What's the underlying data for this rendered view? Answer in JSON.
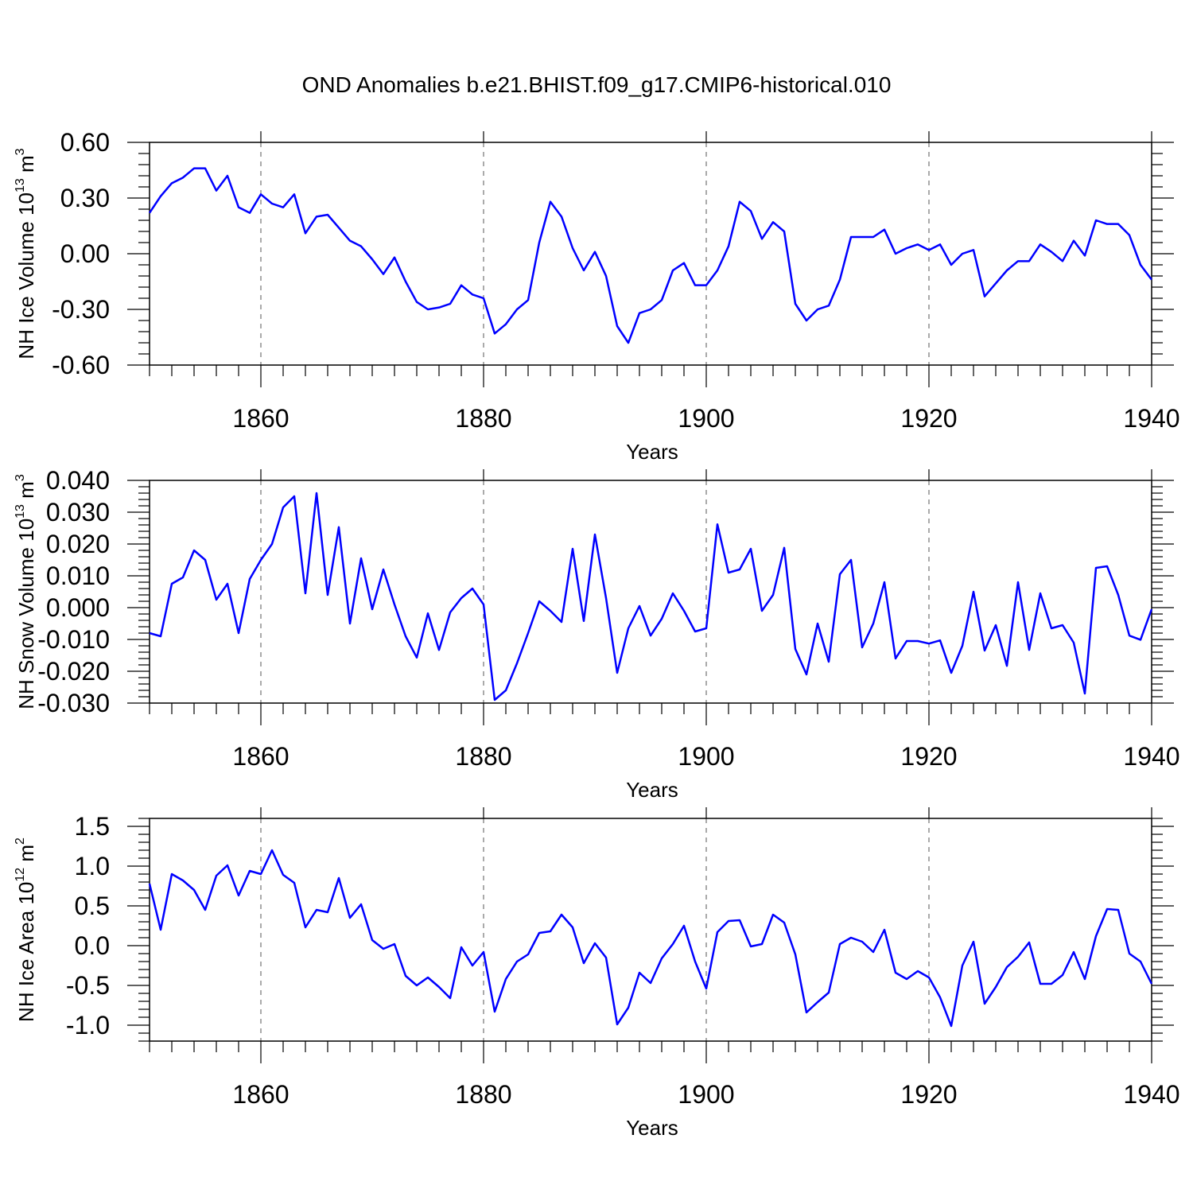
{
  "title": "OND Anomalies b.e21.BHIST.f09_g17.CMIP6-historical.010",
  "line_color": "#0000ff",
  "chart_data": [
    {
      "type": "line",
      "id": "ice-volume",
      "ylabel": {
        "base": "NH Ice Volume 10",
        "exp": "13",
        "unit": " m",
        "unit_exp": "3"
      },
      "xlabel": "Years",
      "xlim": [
        1850,
        1940
      ],
      "ylim": [
        -0.6,
        0.6
      ],
      "xticks": [
        1860,
        1880,
        1900,
        1920,
        1940
      ],
      "yticks": [
        0.6,
        0.3,
        0.0,
        -0.3,
        -0.6
      ],
      "ytick_labels": [
        "0.60",
        "0.30",
        "0.00",
        "-0.30",
        "-0.60"
      ],
      "series": [
        {
          "name": "NH Ice Volume",
          "x_start": 1850,
          "values": [
            0.22,
            0.31,
            0.38,
            0.41,
            0.46,
            0.46,
            0.34,
            0.42,
            0.25,
            0.22,
            0.32,
            0.27,
            0.25,
            0.32,
            0.11,
            0.2,
            0.21,
            0.14,
            0.07,
            0.04,
            -0.03,
            -0.11,
            -0.02,
            -0.15,
            -0.26,
            -0.3,
            -0.29,
            -0.27,
            -0.17,
            -0.22,
            -0.24,
            -0.43,
            -0.38,
            -0.3,
            -0.25,
            0.06,
            0.28,
            0.2,
            0.03,
            -0.09,
            0.01,
            -0.12,
            -0.39,
            -0.48,
            -0.32,
            -0.3,
            -0.25,
            -0.09,
            -0.05,
            -0.17,
            -0.17,
            -0.09,
            0.04,
            0.28,
            0.23,
            0.08,
            0.17,
            0.12,
            -0.27,
            -0.36,
            -0.3,
            -0.28,
            -0.14,
            0.09,
            0.09,
            0.09,
            0.13,
            0.0,
            0.03,
            0.05,
            0.02,
            0.05,
            -0.06,
            0.0,
            0.02,
            -0.23,
            -0.16,
            -0.09,
            -0.04,
            -0.04,
            0.05,
            0.01,
            -0.04,
            0.07,
            -0.01,
            0.18,
            0.16,
            0.16,
            0.1,
            -0.06,
            -0.14
          ]
        }
      ]
    },
    {
      "type": "line",
      "id": "snow-volume",
      "ylabel": {
        "base": "NH Snow Volume 10",
        "exp": "13",
        "unit": " m",
        "unit_exp": "3"
      },
      "xlabel": "Years",
      "xlim": [
        1850,
        1940
      ],
      "ylim": [
        -0.03,
        0.04
      ],
      "xticks": [
        1860,
        1880,
        1900,
        1920,
        1940
      ],
      "yticks": [
        0.04,
        0.03,
        0.02,
        0.01,
        0.0,
        -0.01,
        -0.02,
        -0.03
      ],
      "ytick_labels": [
        "0.040",
        "0.030",
        "0.020",
        "0.010",
        "0.000",
        "-0.010",
        "-0.020",
        "-0.030"
      ],
      "series": [
        {
          "name": "NH Snow Volume",
          "x_start": 1850,
          "values": [
            -0.008,
            -0.009,
            0.0075,
            0.0095,
            0.018,
            0.015,
            0.0025,
            0.0075,
            -0.008,
            0.009,
            0.015,
            0.02,
            0.0315,
            0.035,
            0.0045,
            0.036,
            0.004,
            0.0253,
            -0.005,
            0.0155,
            -0.0005,
            0.012,
            0.001,
            -0.009,
            -0.0157,
            -0.0018,
            -0.0133,
            -0.0015,
            0.003,
            0.006,
            0.001,
            -0.029,
            -0.026,
            -0.0175,
            -0.008,
            0.002,
            -0.001,
            -0.0045,
            0.0185,
            -0.0042,
            0.023,
            0.003,
            -0.0205,
            -0.0065,
            0.0005,
            -0.0088,
            -0.0035,
            0.0045,
            -0.001,
            -0.0075,
            -0.0065,
            0.0262,
            0.011,
            0.012,
            0.0185,
            -0.001,
            0.004,
            0.0188,
            -0.013,
            -0.021,
            -0.005,
            -0.017,
            0.0105,
            0.015,
            -0.0125,
            -0.005,
            0.008,
            -0.016,
            -0.0105,
            -0.0105,
            -0.0113,
            -0.0103,
            -0.0205,
            -0.012,
            0.005,
            -0.0135,
            -0.0055,
            -0.0183,
            0.008,
            -0.0133,
            0.0045,
            -0.0065,
            -0.0055,
            -0.011,
            -0.027,
            0.0125,
            0.013,
            0.004,
            -0.0088,
            -0.0101,
            -0.0005
          ]
        }
      ]
    },
    {
      "type": "line",
      "id": "ice-area",
      "ylabel": {
        "base": "NH Ice Area 10",
        "exp": "12",
        "unit": " m",
        "unit_exp": "2"
      },
      "xlabel": "Years",
      "xlim": [
        1850,
        1940
      ],
      "ylim": [
        -1.2,
        1.6
      ],
      "xticks": [
        1860,
        1880,
        1900,
        1920,
        1940
      ],
      "yticks": [
        1.5,
        1.0,
        0.5,
        0.0,
        -0.5,
        -1.0
      ],
      "ytick_labels": [
        "1.5",
        "1.0",
        "0.5",
        "0.0",
        "-0.5",
        "-1.0"
      ],
      "series": [
        {
          "name": "NH Ice Area",
          "x_start": 1850,
          "values": [
            0.78,
            0.2,
            0.9,
            0.82,
            0.7,
            0.45,
            0.88,
            1.01,
            0.63,
            0.94,
            0.9,
            1.2,
            0.89,
            0.79,
            0.23,
            0.45,
            0.42,
            0.85,
            0.35,
            0.52,
            0.07,
            -0.04,
            0.02,
            -0.38,
            -0.5,
            -0.4,
            -0.52,
            -0.66,
            -0.02,
            -0.25,
            -0.08,
            -0.83,
            -0.42,
            -0.2,
            -0.11,
            0.16,
            0.18,
            0.39,
            0.23,
            -0.22,
            0.03,
            -0.15,
            -0.99,
            -0.78,
            -0.34,
            -0.47,
            -0.16,
            0.02,
            0.25,
            -0.2,
            -0.54,
            0.17,
            0.31,
            0.32,
            -0.01,
            0.02,
            0.39,
            0.29,
            -0.11,
            -0.84,
            -0.71,
            -0.59,
            0.02,
            0.1,
            0.05,
            -0.08,
            0.2,
            -0.34,
            -0.42,
            -0.32,
            -0.4,
            -0.65,
            -1.01,
            -0.25,
            0.05,
            -0.73,
            -0.52,
            -0.27,
            -0.14,
            0.04,
            -0.48,
            -0.48,
            -0.37,
            -0.08,
            -0.42,
            0.12,
            0.46,
            0.45,
            -0.1,
            -0.2,
            -0.48
          ]
        }
      ]
    }
  ]
}
